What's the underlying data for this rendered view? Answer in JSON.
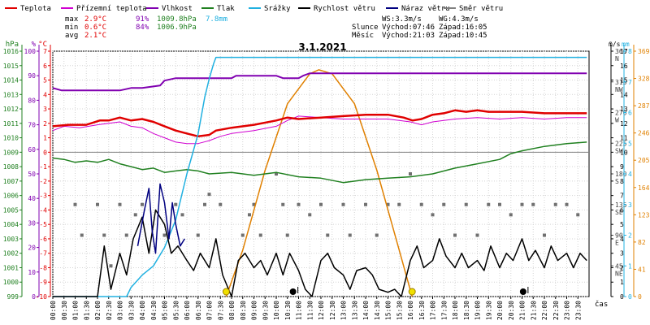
{
  "chart_data": {
    "type": "line",
    "title": "3.1.2021",
    "xlabel": "čas",
    "legend": [
      {
        "name": "Teplota",
        "color": "#e00000"
      },
      {
        "name": "Přízemní teplota",
        "color": "#d000d0"
      },
      {
        "name": "Vlhkost",
        "color": "#8000b0"
      },
      {
        "name": "Tlak",
        "color": "#208020"
      },
      {
        "name": "Srážky",
        "color": "#20b0e0"
      },
      {
        "name": "Rychlost větru",
        "color": "#000000"
      },
      {
        "name": "Náraz větru",
        "color": "#000080"
      },
      {
        "name": "Směr větru",
        "color": "#808080"
      }
    ],
    "stats": {
      "max": {
        "label": "max",
        "temp": "2.9°C",
        "hum": "91%",
        "press": "1009.8hPa",
        "rain": "7.8mm"
      },
      "min": {
        "label": "min",
        "temp": "0.6°C",
        "hum": "84%",
        "press": "1006.9hPa"
      },
      "avg": {
        "label": "avg",
        "temp": "2.1°C"
      }
    },
    "wind_info": {
      "ws": "WS:3.3m/s",
      "wg": "WG:4.3m/s"
    },
    "sun": {
      "label": "Slunce",
      "rise": "Východ:07:46",
      "set": "Západ:16:05"
    },
    "moon": {
      "label": "Měsíc",
      "rise": "Východ:21:03",
      "set": "Západ:10:45"
    },
    "axes": {
      "hpa": {
        "unit": "hPa",
        "range": [
          999,
          1016
        ],
        "ticks": [
          "999",
          "1000",
          "1001",
          "1002",
          "1003",
          "1004",
          "1005",
          "1006",
          "1007",
          "1008",
          "1009",
          "1010",
          "1011",
          "1012",
          "1013",
          "1014",
          "1015",
          "1016"
        ]
      },
      "pct": {
        "unit": "%",
        "range": [
          0,
          100
        ],
        "ticks": [
          "0",
          "10",
          "20",
          "30",
          "40",
          "50",
          "60",
          "70",
          "80",
          "90",
          "100"
        ]
      },
      "celsius": {
        "unit": "°C",
        "range": [
          -10,
          7
        ],
        "ticks": [
          "-10",
          "-9",
          "-8",
          "-7",
          "-6",
          "-5",
          "-4",
          "-3",
          "-2",
          "-1",
          "0",
          "1",
          "2",
          "3",
          "4",
          "5",
          "6",
          "7"
        ]
      },
      "deg": {
        "unit": "°",
        "range": [
          0,
          360
        ],
        "ticks": [
          "45",
          "90",
          "135",
          "180",
          "225",
          "270",
          "315",
          "360"
        ],
        "compass": [
          "NE",
          "E",
          "SE",
          "S",
          "SW",
          "W",
          "NW",
          "N"
        ]
      },
      "ms": {
        "unit": "m/s",
        "range": [
          0,
          17
        ],
        "ticks": [
          "0",
          "1",
          "2",
          "3",
          "4",
          "5",
          "6",
          "7",
          "8",
          "9",
          "10",
          "11",
          "12",
          "13",
          "14",
          "15",
          "16",
          "17"
        ]
      },
      "mm": {
        "unit": "mm",
        "range": [
          0,
          8
        ],
        "ticks": [
          "0",
          "1",
          "2",
          "3",
          "4",
          "5",
          "6",
          "7",
          "8"
        ]
      },
      "solar": {
        "range": [
          0,
          369
        ],
        "ticks": [
          "0",
          "41",
          "82",
          "123",
          "164",
          "205",
          "246",
          "287",
          "328",
          "369"
        ]
      }
    },
    "x_range": [
      0,
      24
    ],
    "x_ticks": [
      "00:00",
      "00:30",
      "01:00",
      "01:30",
      "02:00",
      "02:30",
      "03:00",
      "03:30",
      "04:00",
      "04:30",
      "05:00",
      "05:30",
      "06:00",
      "06:30",
      "07:00",
      "07:30",
      "08:00",
      "08:30",
      "09:00",
      "09:30",
      "10:00",
      "10:30",
      "11:00",
      "11:30",
      "12:00",
      "12:30",
      "13:00",
      "13:30",
      "14:00",
      "14:30",
      "15:00",
      "15:30",
      "16:00",
      "16:30",
      "17:00",
      "17:30",
      "18:00",
      "18:30",
      "19:00",
      "19:30",
      "20:00",
      "20:30",
      "21:00",
      "21:30",
      "22:00",
      "22:30",
      "23:00",
      "23:30"
    ],
    "series": [
      {
        "name": "Teplota",
        "axis": "celsius",
        "color": "#e00000",
        "x": [
          0,
          0.7,
          1.5,
          2.1,
          2.5,
          3.0,
          3.5,
          4.0,
          4.5,
          5.0,
          5.5,
          6.0,
          6.5,
          7.0,
          7.3,
          8.0,
          9.0,
          10.0,
          10.5,
          11.0,
          12.0,
          13.0,
          14.0,
          15.0,
          15.7,
          16.1,
          16.5,
          17.0,
          17.5,
          18.0,
          18.5,
          19.0,
          19.5,
          20.0,
          21.0,
          22.0,
          23.0,
          23.9
        ],
        "y": [
          1.8,
          1.9,
          1.9,
          2.2,
          2.2,
          2.4,
          2.2,
          2.3,
          2.1,
          1.8,
          1.5,
          1.3,
          1.1,
          1.2,
          1.5,
          1.7,
          1.9,
          2.2,
          2.4,
          2.3,
          2.4,
          2.5,
          2.6,
          2.6,
          2.4,
          2.2,
          2.3,
          2.6,
          2.7,
          2.9,
          2.8,
          2.9,
          2.8,
          2.8,
          2.8,
          2.7,
          2.7,
          2.7
        ]
      },
      {
        "name": "Přízemní teplota",
        "axis": "celsius",
        "color": "#d000d0",
        "x": [
          0,
          0.5,
          1.2,
          2.0,
          2.5,
          3.0,
          3.5,
          4.0,
          4.5,
          5.0,
          5.5,
          6.0,
          6.5,
          7.0,
          7.5,
          8.0,
          9.0,
          10.0,
          10.5,
          11.0,
          12.0,
          13.0,
          14.0,
          15.0,
          16.0,
          16.5,
          17.0,
          18.0,
          19.0,
          20.0,
          21.0,
          22.0,
          23.0,
          23.9
        ],
        "y": [
          1.5,
          1.8,
          1.7,
          1.9,
          2.0,
          2.1,
          1.8,
          1.7,
          1.3,
          1.0,
          0.7,
          0.6,
          0.6,
          0.8,
          1.1,
          1.3,
          1.5,
          1.8,
          2.2,
          2.5,
          2.4,
          2.3,
          2.3,
          2.3,
          2.1,
          1.9,
          2.1,
          2.3,
          2.4,
          2.3,
          2.4,
          2.3,
          2.4,
          2.4
        ]
      },
      {
        "name": "Vlhkost",
        "axis": "pct",
        "color": "#8000b0",
        "x": [
          0,
          0.4,
          3.0,
          3.5,
          4.0,
          4.8,
          5.0,
          5.5,
          6.0,
          8.0,
          8.2,
          10.0,
          10.3,
          11.0,
          11.2,
          11.5,
          16.0,
          16.2,
          23.9
        ],
        "y": [
          85,
          84,
          84,
          85,
          85,
          86,
          88,
          89,
          89,
          89,
          90,
          90,
          89,
          89,
          90,
          91,
          91,
          91,
          91
        ]
      },
      {
        "name": "Tlak",
        "axis": "hpa",
        "color": "#208020",
        "x": [
          0,
          0.5,
          1.0,
          1.5,
          2.0,
          2.5,
          3.0,
          3.5,
          4.0,
          4.5,
          5.0,
          5.5,
          6.0,
          6.5,
          7.0,
          8.0,
          9.0,
          10.0,
          11.0,
          12.0,
          13.0,
          14.0,
          15.0,
          16.0,
          17.0,
          18.0,
          19.0,
          20.0,
          20.5,
          21.0,
          22.0,
          23.0,
          23.9
        ],
        "y": [
          1008.6,
          1008.5,
          1008.3,
          1008.4,
          1008.3,
          1008.5,
          1008.2,
          1008.0,
          1007.8,
          1007.9,
          1007.6,
          1007.7,
          1007.8,
          1007.7,
          1007.5,
          1007.6,
          1007.4,
          1007.6,
          1007.3,
          1007.2,
          1006.9,
          1007.1,
          1007.2,
          1007.3,
          1007.5,
          1007.9,
          1008.2,
          1008.5,
          1008.9,
          1009.1,
          1009.4,
          1009.6,
          1009.7
        ]
      },
      {
        "name": "Srážky",
        "axis": "mm",
        "color": "#20b0e0",
        "x": [
          0,
          3.3,
          3.5,
          4.0,
          4.5,
          5.0,
          5.5,
          6.0,
          6.5,
          6.8,
          7.0,
          7.2,
          7.3,
          23.9
        ],
        "y": [
          0,
          0,
          0.3,
          0.7,
          1.0,
          1.6,
          2.5,
          4.0,
          5.3,
          6.5,
          7.1,
          7.6,
          7.8,
          7.8
        ]
      },
      {
        "name": "Rychlost větru",
        "axis": "ms",
        "color": "#000000",
        "x": [
          0,
          2.0,
          2.3,
          2.6,
          3.0,
          3.3,
          3.6,
          4.0,
          4.3,
          4.6,
          5.0,
          5.3,
          5.6,
          6.0,
          6.3,
          6.6,
          7.0,
          7.3,
          7.6,
          8.0,
          8.3,
          8.6,
          9.0,
          9.3,
          9.6,
          10.0,
          10.3,
          10.6,
          11.0,
          11.3,
          11.6,
          12.0,
          12.3,
          12.6,
          13.0,
          13.3,
          13.6,
          14.0,
          14.3,
          14.6,
          15.0,
          15.3,
          15.6,
          16.0,
          16.3,
          16.6,
          17.0,
          17.3,
          17.6,
          18.0,
          18.3,
          18.6,
          19.0,
          19.3,
          19.6,
          20.0,
          20.3,
          20.6,
          21.0,
          21.3,
          21.6,
          22.0,
          22.3,
          22.6,
          23.0,
          23.3,
          23.6,
          23.9
        ],
        "y": [
          0,
          0,
          3.5,
          0.5,
          3.0,
          1.5,
          4.0,
          5.5,
          3.0,
          6.0,
          5.0,
          3.0,
          3.5,
          2.5,
          1.8,
          3.0,
          2.0,
          4.0,
          1.5,
          0,
          2.5,
          3.0,
          2.0,
          2.5,
          1.5,
          3.0,
          1.5,
          3.0,
          1.8,
          0.5,
          0,
          2.5,
          3.0,
          2.0,
          1.5,
          0.5,
          1.8,
          2.0,
          1.5,
          0.5,
          0.3,
          0.5,
          0,
          2.5,
          3.5,
          2.0,
          2.5,
          4.0,
          2.8,
          2.0,
          3.0,
          2.0,
          2.5,
          1.8,
          3.5,
          2.0,
          3.0,
          2.5,
          4.0,
          2.5,
          3.2,
          2.0,
          3.5,
          2.5,
          3.0,
          2.0,
          3.0,
          2.5
        ]
      },
      {
        "name": "Náraz větru",
        "axis": "ms",
        "color": "#000080",
        "x": [
          3.8,
          4.1,
          4.3,
          4.45,
          4.6,
          4.8,
          5.0,
          5.2,
          5.35,
          5.5,
          5.7,
          5.9
        ],
        "y": [
          3.5,
          6.0,
          7.5,
          4.5,
          3.0,
          7.8,
          6.5,
          4.0,
          6.5,
          5.0,
          3.5,
          4.0
        ]
      },
      {
        "name": "Slunce",
        "axis": "solar",
        "color": "#e08000",
        "x": [
          7.76,
          8.5,
          9.5,
          10.5,
          11.5,
          11.9,
          12.5,
          13.5,
          14.5,
          15.5,
          16.08
        ],
        "y": [
          0,
          70,
          190,
          290,
          335,
          341,
          335,
          290,
          190,
          70,
          0
        ]
      },
      {
        "name": "Směr větru",
        "axis": "deg",
        "color": "#707070",
        "x": [
          1.0,
          1.3,
          2.0,
          2.3,
          2.6,
          3.0,
          3.3,
          3.7,
          4.0,
          5.0,
          5.5,
          5.8,
          6.5,
          6.8,
          7.0,
          7.5,
          8.5,
          8.8,
          9.0,
          9.3,
          10.0,
          10.3,
          10.5,
          11.0,
          11.5,
          12.0,
          12.3,
          13.0,
          13.3,
          14.0,
          14.5,
          15.0,
          15.5,
          16.0,
          16.5,
          17.0,
          17.5,
          18.0,
          18.5,
          19.0,
          19.5,
          20.0,
          20.5,
          21.0,
          21.5,
          22.0,
          22.5,
          23.0,
          23.5
        ],
        "y": [
          135,
          90,
          135,
          90,
          45,
          135,
          90,
          120,
          135,
          90,
          135,
          120,
          90,
          135,
          150,
          135,
          90,
          120,
          135,
          90,
          180,
          135,
          90,
          135,
          120,
          135,
          90,
          135,
          90,
          135,
          90,
          135,
          135,
          180,
          135,
          120,
          135,
          90,
          135,
          90,
          135,
          135,
          120,
          135,
          135,
          90,
          135,
          135,
          120
        ]
      }
    ],
    "markers": [
      {
        "kind": "sunrise",
        "x": 7.76,
        "label": "Východ:07:46"
      },
      {
        "kind": "sunset",
        "x": 16.08,
        "label": "Západ:16:05"
      },
      {
        "kind": "moonset",
        "x": 10.75,
        "label": "Západ:10:45"
      },
      {
        "kind": "moonrise",
        "x": 21.05,
        "label": "Východ:21:03"
      }
    ]
  }
}
